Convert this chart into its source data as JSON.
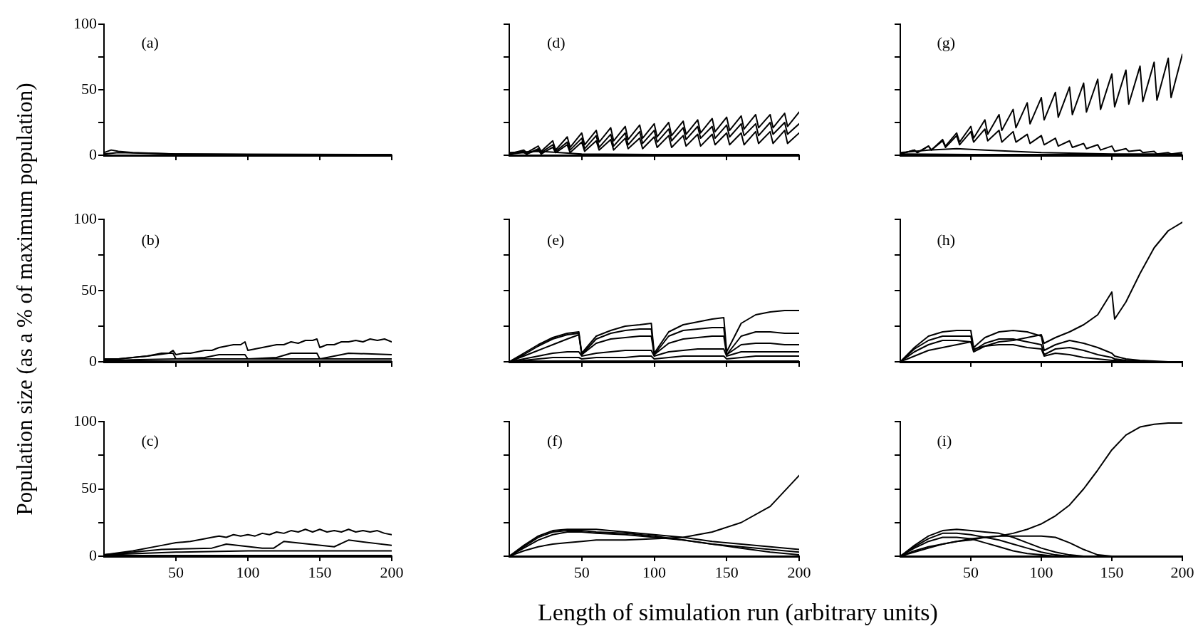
{
  "chart_data": [
    {
      "type": "line",
      "title": "(a)",
      "xlim": [
        0,
        200
      ],
      "xticks": [
        50,
        100,
        150,
        200
      ],
      "ylim": [
        0,
        100
      ],
      "yticks": [
        0,
        {
          "value": 25,
          "label": null
        },
        50,
        {
          "value": 75,
          "label": null
        },
        100
      ],
      "tick_labels": "y",
      "marker": "none",
      "series": [
        {
          "color": "#000000",
          "x": [
            0,
            5,
            10,
            20,
            50,
            100,
            150,
            200
          ],
          "values": [
            2,
            4,
            3,
            2,
            1,
            0.5,
            0.5,
            0.5
          ]
        },
        {
          "color": "#000000",
          "x": [
            0,
            10,
            50,
            200
          ],
          "values": [
            1,
            2,
            1,
            0.5
          ]
        }
      ]
    },
    {
      "type": "line",
      "title": "(d)",
      "xlim": [
        0,
        200
      ],
      "xticks": [
        50,
        100,
        150,
        200
      ],
      "ylim": [
        0,
        100
      ],
      "yticks": [
        {
          "value": 0,
          "label": null
        },
        {
          "value": 25,
          "label": null
        },
        {
          "value": 50,
          "label": null
        },
        {
          "value": 75,
          "label": null
        },
        {
          "value": 100,
          "label": null
        }
      ],
      "tick_labels": false,
      "marker": "none",
      "x": [
        0,
        10,
        12,
        20,
        22,
        30,
        32,
        40,
        42,
        50,
        52,
        60,
        62,
        70,
        72,
        80,
        82,
        90,
        92,
        100,
        102,
        110,
        112,
        120,
        122,
        130,
        132,
        140,
        142,
        150,
        152,
        160,
        162,
        170,
        172,
        180,
        182,
        190,
        192,
        200
      ],
      "series": [
        {
          "color": "#000000",
          "values": [
            1,
            4,
            2,
            7,
            3,
            11,
            4,
            14,
            6,
            17,
            8,
            19,
            10,
            21,
            11,
            22,
            12,
            23,
            13,
            24,
            14,
            25,
            15,
            26,
            16,
            27,
            17,
            28,
            18,
            29,
            19,
            30,
            20,
            31,
            21,
            31,
            21,
            32,
            22,
            33
          ]
        },
        {
          "color": "#000000",
          "values": [
            1,
            3,
            1,
            5,
            2,
            8,
            3,
            10,
            4,
            13,
            5,
            15,
            6,
            16,
            7,
            17,
            8,
            18,
            9,
            19,
            10,
            20,
            11,
            21,
            12,
            22,
            13,
            22,
            13,
            23,
            14,
            24,
            15,
            24,
            15,
            25,
            16,
            25,
            16,
            24
          ]
        },
        {
          "color": "#000000",
          "values": [
            1,
            2,
            1,
            4,
            1,
            6,
            2,
            8,
            2,
            10,
            3,
            11,
            4,
            12,
            4,
            13,
            5,
            13,
            5,
            14,
            6,
            15,
            6,
            15,
            7,
            16,
            7,
            16,
            8,
            17,
            8,
            17,
            8,
            18,
            9,
            18,
            9,
            19,
            9,
            17
          ]
        },
        {
          "color": "#000000",
          "x": [
            0,
            20,
            50,
            100,
            200
          ],
          "values": [
            2,
            3,
            1,
            0.5,
            0.5
          ]
        }
      ]
    },
    {
      "type": "line",
      "title": "(g)",
      "xlim": [
        0,
        200
      ],
      "xticks": [
        50,
        100,
        150,
        200
      ],
      "ylim": [
        0,
        100
      ],
      "yticks": [
        {
          "value": 0,
          "label": null
        },
        {
          "value": 25,
          "label": null
        },
        {
          "value": 50,
          "label": null
        },
        {
          "value": 75,
          "label": null
        },
        {
          "value": 100,
          "label": null
        }
      ],
      "tick_labels": false,
      "marker": "none",
      "x": [
        0,
        10,
        12,
        20,
        22,
        30,
        32,
        40,
        42,
        50,
        52,
        60,
        62,
        70,
        72,
        80,
        82,
        90,
        92,
        100,
        102,
        110,
        112,
        120,
        122,
        130,
        132,
        140,
        142,
        150,
        152,
        160,
        162,
        170,
        172,
        180,
        182,
        190,
        192,
        200
      ],
      "series": [
        {
          "color": "#000000",
          "values": [
            1,
            4,
            2,
            7,
            4,
            12,
            7,
            17,
            10,
            22,
            13,
            27,
            16,
            31,
            19,
            35,
            21,
            40,
            24,
            44,
            27,
            48,
            29,
            52,
            31,
            55,
            33,
            58,
            35,
            62,
            37,
            65,
            39,
            68,
            41,
            71,
            42,
            74,
            44,
            77
          ]
        },
        {
          "color": "#000000",
          "values": [
            1,
            4,
            2,
            7,
            4,
            11,
            6,
            15,
            8,
            18,
            10,
            20,
            11,
            19,
            10,
            18,
            10,
            16,
            9,
            15,
            8,
            13,
            7,
            11,
            6,
            9,
            5,
            8,
            4,
            7,
            3,
            5,
            3,
            4,
            2,
            3,
            1,
            2,
            1,
            2
          ]
        },
        {
          "color": "#000000",
          "x": [
            0,
            20,
            40,
            60,
            100,
            150,
            200
          ],
          "values": [
            2,
            4,
            5,
            4,
            2,
            1,
            1
          ]
        },
        {
          "color": "#000000",
          "x": [
            0,
            50,
            100,
            200
          ],
          "values": [
            1,
            0.5,
            0.5,
            0.5
          ]
        }
      ]
    },
    {
      "type": "line",
      "title": "(b)",
      "ylabel": "Population size (as a % of maximum population)",
      "xlim": [
        0,
        200
      ],
      "xticks": [
        50,
        100,
        150,
        200
      ],
      "ylim": [
        0,
        100
      ],
      "yticks": [
        0,
        {
          "value": 25,
          "label": null
        },
        50,
        {
          "value": 75,
          "label": null
        },
        100
      ],
      "tick_labels": "y",
      "marker": "none",
      "series": [
        {
          "color": "#000000",
          "x": [
            0,
            10,
            20,
            30,
            40,
            45,
            48,
            50,
            55,
            60,
            65,
            70,
            75,
            80,
            85,
            90,
            95,
            98,
            100,
            105,
            110,
            115,
            120,
            125,
            130,
            135,
            140,
            145,
            148,
            150,
            155,
            160,
            165,
            170,
            175,
            180,
            185,
            190,
            195,
            200
          ],
          "values": [
            2,
            2,
            3,
            4,
            6,
            6,
            8,
            5,
            6,
            6,
            7,
            8,
            8,
            10,
            11,
            12,
            12,
            14,
            8,
            9,
            10,
            11,
            12,
            12,
            14,
            13,
            15,
            15,
            16,
            10,
            12,
            12,
            14,
            14,
            15,
            14,
            16,
            15,
            16,
            14
          ]
        },
        {
          "color": "#000000",
          "x": [
            0,
            30,
            45,
            48,
            50,
            70,
            80,
            98,
            100,
            120,
            130,
            148,
            150,
            170,
            200
          ],
          "values": [
            1,
            4,
            6,
            6,
            2,
            3,
            5,
            5,
            2,
            3,
            6,
            6,
            2,
            6,
            5
          ]
        },
        {
          "color": "#000000",
          "x": [
            0,
            50,
            100,
            150,
            200
          ],
          "values": [
            1,
            2,
            2,
            2,
            2
          ]
        },
        {
          "color": "#000000",
          "x": [
            0,
            200
          ],
          "values": [
            0.5,
            0.5
          ]
        }
      ]
    },
    {
      "type": "line",
      "title": "(e)",
      "xlim": [
        0,
        200
      ],
      "xticks": [
        50,
        100,
        150,
        200
      ],
      "ylim": [
        0,
        100
      ],
      "yticks": [
        {
          "value": 0,
          "label": null
        },
        {
          "value": 25,
          "label": null
        },
        {
          "value": 50,
          "label": null
        },
        {
          "value": 75,
          "label": null
        },
        {
          "value": 100,
          "label": null
        }
      ],
      "tick_labels": false,
      "marker": "none",
      "x": [
        0,
        10,
        20,
        30,
        40,
        48,
        50,
        60,
        70,
        80,
        90,
        98,
        100,
        110,
        120,
        130,
        140,
        148,
        150,
        160,
        170,
        180,
        190,
        200
      ],
      "series": [
        {
          "color": "#000000",
          "values": [
            0,
            6,
            12,
            17,
            20,
            21,
            6,
            18,
            22,
            25,
            26,
            27,
            6,
            21,
            26,
            28,
            30,
            31,
            7,
            27,
            33,
            35,
            36,
            36
          ]
        },
        {
          "color": "#000000",
          "values": [
            0,
            5,
            11,
            16,
            19,
            20,
            5,
            16,
            20,
            22,
            23,
            23,
            5,
            18,
            22,
            23,
            24,
            24,
            5,
            18,
            21,
            21,
            20,
            20
          ]
        },
        {
          "color": "#000000",
          "values": [
            0,
            4,
            8,
            12,
            16,
            19,
            5,
            13,
            16,
            17,
            18,
            18,
            5,
            13,
            16,
            17,
            18,
            18,
            5,
            12,
            13,
            13,
            12,
            12
          ]
        },
        {
          "color": "#000000",
          "values": [
            0,
            2,
            4,
            6,
            7,
            7,
            4,
            6,
            7,
            8,
            8,
            8,
            4,
            7,
            8,
            9,
            9,
            9,
            4,
            7,
            7,
            7,
            7,
            7
          ]
        },
        {
          "color": "#000000",
          "values": [
            0,
            1,
            2,
            3,
            3,
            3,
            2,
            3,
            3,
            3,
            4,
            4,
            2,
            3,
            4,
            4,
            4,
            4,
            2,
            3,
            4,
            4,
            4,
            4
          ]
        },
        {
          "color": "#000000",
          "x": [
            0,
            200
          ],
          "values": [
            0.5,
            0.5
          ]
        }
      ]
    },
    {
      "type": "line",
      "title": "(h)",
      "xlim": [
        0,
        200
      ],
      "xticks": [
        50,
        100,
        150,
        200
      ],
      "ylim": [
        0,
        100
      ],
      "yticks": [
        {
          "value": 0,
          "label": null
        },
        {
          "value": 25,
          "label": null
        },
        {
          "value": 50,
          "label": null
        },
        {
          "value": 75,
          "label": null
        },
        {
          "value": 100,
          "label": null
        }
      ],
      "tick_labels": false,
      "marker": "none",
      "x": [
        0,
        10,
        20,
        30,
        40,
        50,
        52,
        60,
        70,
        80,
        90,
        100,
        102,
        110,
        120,
        130,
        140,
        150,
        152,
        160,
        170,
        180,
        190,
        200
      ],
      "series": [
        {
          "color": "#000000",
          "values": [
            0,
            4,
            8,
            10,
            12,
            14,
            9,
            11,
            14,
            15,
            17,
            19,
            13,
            17,
            21,
            26,
            33,
            49,
            30,
            42,
            62,
            80,
            92,
            98
          ]
        },
        {
          "color": "#000000",
          "values": [
            0,
            10,
            18,
            21,
            22,
            22,
            10,
            17,
            21,
            22,
            21,
            18,
            8,
            12,
            15,
            13,
            10,
            6,
            4,
            2,
            1,
            0.5,
            0,
            0
          ]
        },
        {
          "color": "#000000",
          "values": [
            0,
            9,
            15,
            18,
            18,
            18,
            8,
            13,
            16,
            16,
            14,
            12,
            5,
            9,
            10,
            8,
            5,
            3,
            2,
            1,
            0.5,
            0,
            0,
            0
          ]
        },
        {
          "color": "#000000",
          "values": [
            0,
            7,
            12,
            15,
            15,
            14,
            7,
            11,
            12,
            12,
            10,
            9,
            4,
            6,
            5,
            3,
            2,
            1,
            1,
            0.5,
            0,
            0,
            0,
            0
          ]
        }
      ]
    },
    {
      "type": "line",
      "title": "(c)",
      "xlim": [
        0,
        200
      ],
      "xticks": [
        50,
        100,
        150,
        200
      ],
      "ylim": [
        0,
        100
      ],
      "yticks": [
        0,
        {
          "value": 25,
          "label": null
        },
        50,
        {
          "value": 75,
          "label": null
        },
        100
      ],
      "marker": "none",
      "series": [
        {
          "color": "#000000",
          "x": [
            0,
            20,
            40,
            50,
            60,
            70,
            75,
            80,
            85,
            90,
            95,
            100,
            105,
            110,
            115,
            120,
            125,
            130,
            135,
            140,
            145,
            150,
            155,
            160,
            165,
            170,
            175,
            180,
            185,
            190,
            195,
            200
          ],
          "values": [
            1,
            4,
            8,
            10,
            11,
            13,
            14,
            15,
            14,
            16,
            15,
            16,
            15,
            17,
            16,
            18,
            17,
            19,
            18,
            20,
            18,
            20,
            18,
            19,
            18,
            20,
            18,
            19,
            18,
            19,
            17,
            16
          ]
        },
        {
          "color": "#000000",
          "x": [
            0,
            40,
            75,
            85,
            110,
            118,
            125,
            160,
            170,
            200
          ],
          "values": [
            1,
            5,
            6,
            9,
            6,
            6,
            11,
            7,
            12,
            8
          ]
        },
        {
          "color": "#000000",
          "x": [
            0,
            50,
            100,
            150,
            200
          ],
          "values": [
            1,
            3,
            4,
            4,
            4
          ]
        },
        {
          "color": "#000000",
          "x": [
            0,
            200
          ],
          "values": [
            0.5,
            0.5
          ]
        }
      ]
    },
    {
      "type": "line",
      "title": "(f)",
      "xlabel": "Length of simulation run (arbitrary units)",
      "xlim": [
        0,
        200
      ],
      "xticks": [
        50,
        100,
        150,
        200
      ],
      "ylim": [
        0,
        100
      ],
      "yticks": [
        {
          "value": 0,
          "label": null
        },
        {
          "value": 25,
          "label": null
        },
        {
          "value": 50,
          "label": null
        },
        {
          "value": 75,
          "label": null
        },
        {
          "value": 100,
          "label": null
        }
      ],
      "tick_labels": "x",
      "marker": "none",
      "x": [
        0,
        10,
        20,
        30,
        40,
        50,
        60,
        80,
        100,
        120,
        140,
        160,
        180,
        200
      ],
      "series": [
        {
          "color": "#000000",
          "values": [
            0,
            4,
            7,
            9,
            10,
            11,
            12,
            12,
            13,
            14,
            18,
            25,
            37,
            60
          ]
        },
        {
          "color": "#000000",
          "values": [
            0,
            8,
            15,
            19,
            20,
            20,
            20,
            18,
            16,
            14,
            11,
            9,
            7,
            5
          ]
        },
        {
          "color": "#000000",
          "values": [
            0,
            7,
            14,
            18,
            19,
            19,
            18,
            17,
            15,
            12,
            9,
            6,
            3,
            1
          ]
        },
        {
          "color": "#000000",
          "values": [
            0,
            6,
            12,
            16,
            18,
            18,
            17,
            16,
            14,
            12,
            9,
            7,
            5,
            3
          ]
        }
      ]
    },
    {
      "type": "line",
      "title": "(i)",
      "xlim": [
        0,
        200
      ],
      "xticks": [
        50,
        100,
        150,
        200
      ],
      "ylim": [
        0,
        100
      ],
      "yticks": [
        {
          "value": 0,
          "label": null
        },
        {
          "value": 25,
          "label": null
        },
        {
          "value": 50,
          "label": null
        },
        {
          "value": 75,
          "label": null
        },
        {
          "value": 100,
          "label": null
        }
      ],
      "tick_labels": "x",
      "marker": "none",
      "x": [
        0,
        10,
        20,
        30,
        40,
        50,
        60,
        70,
        80,
        90,
        100,
        110,
        120,
        130,
        140,
        150,
        160,
        170,
        180,
        190,
        200
      ],
      "series": [
        {
          "color": "#000000",
          "values": [
            0,
            3,
            6,
            9,
            11,
            12,
            14,
            15,
            17,
            20,
            24,
            30,
            38,
            50,
            64,
            79,
            90,
            96,
            98,
            99,
            99
          ]
        },
        {
          "color": "#000000",
          "values": [
            0,
            8,
            15,
            19,
            20,
            19,
            18,
            17,
            14,
            10,
            6,
            3,
            1,
            0,
            null,
            null,
            null,
            null,
            null,
            null,
            null
          ]
        },
        {
          "color": "#000000",
          "values": [
            0,
            7,
            13,
            17,
            17,
            16,
            14,
            12,
            9,
            6,
            3,
            1,
            0,
            null,
            null,
            null,
            null,
            null,
            null,
            null,
            null
          ]
        },
        {
          "color": "#000000",
          "values": [
            0,
            4,
            7,
            9,
            11,
            13,
            14,
            15,
            15,
            15,
            15,
            14,
            10,
            5,
            1,
            0,
            0,
            0,
            0,
            0,
            0
          ]
        },
        {
          "color": "#000000",
          "values": [
            0,
            6,
            11,
            14,
            14,
            13,
            10,
            7,
            4,
            2,
            1,
            0,
            null,
            null,
            null,
            null,
            null,
            null,
            null,
            null,
            null
          ]
        }
      ]
    }
  ]
}
